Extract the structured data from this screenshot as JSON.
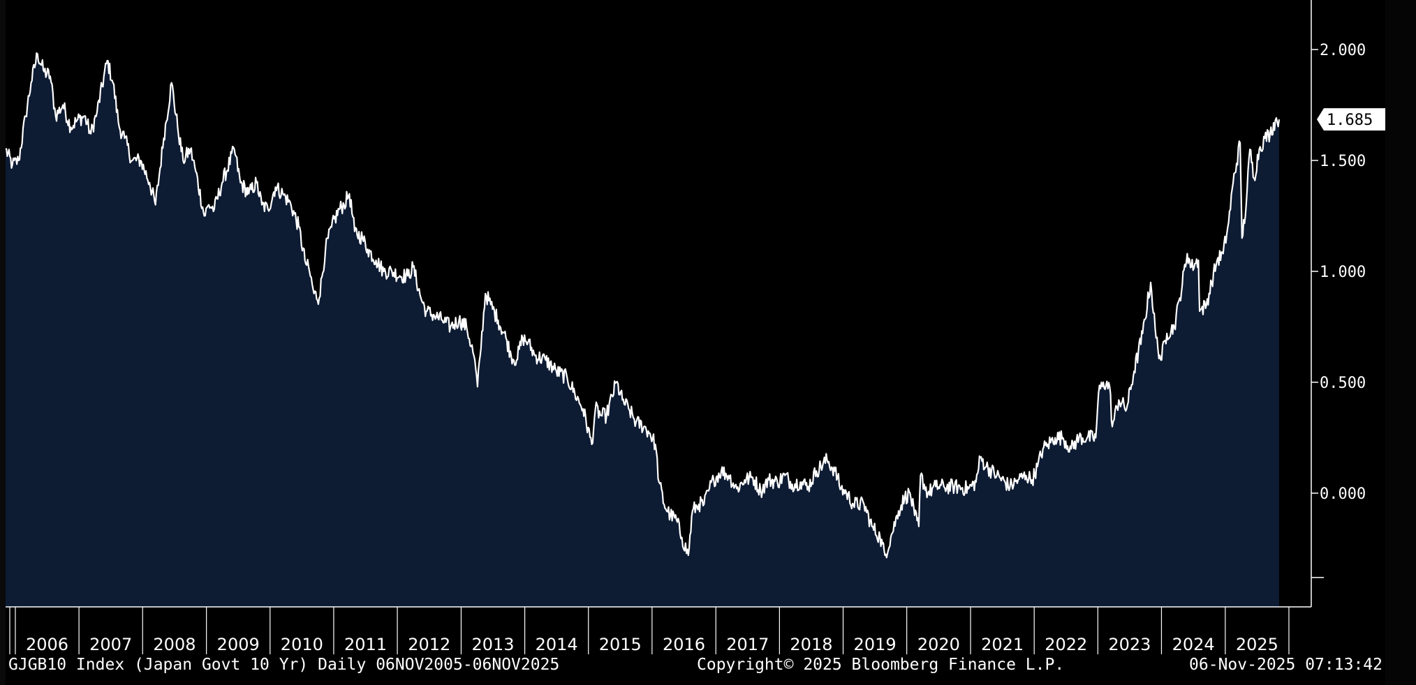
{
  "footer": {
    "left": "GJGB10 Index (Japan Govt 10 Yr) Daily 06NOV2005-06NOV2025",
    "center": "Copyright© 2025 Bloomberg Finance L.P.",
    "right": "06-Nov-2025 07:13:42"
  },
  "chart_data": {
    "type": "area",
    "title": "",
    "xlabel": "",
    "ylabel": "",
    "xlim": [
      "2005-11-06",
      "2025-11-06"
    ],
    "ylim": [
      -0.5,
      2.2
    ],
    "yticks": [
      "2.000",
      "1.500",
      "1.000",
      "0.500",
      "0.000"
    ],
    "ytick_values": [
      2.0,
      1.5,
      1.0,
      0.5,
      0.0
    ],
    "xticks": [
      "2006",
      "2007",
      "2008",
      "2009",
      "2010",
      "2011",
      "2012",
      "2013",
      "2014",
      "2015",
      "2016",
      "2017",
      "2018",
      "2019",
      "2020",
      "2021",
      "2022",
      "2023",
      "2024",
      "2025"
    ],
    "last_value_label": "1.685",
    "grid": false,
    "legend": "none",
    "colors": {
      "line": "#ffffff",
      "fill": "#0d1b33",
      "background": "#000000",
      "label_box": "#ffffff"
    },
    "series": [
      {
        "values": [
          [
            "2005-11-06",
            1.55
          ],
          [
            "2005-12-15",
            1.48
          ],
          [
            "2006-01-20",
            1.5
          ],
          [
            "2006-03-01",
            1.7
          ],
          [
            "2006-04-01",
            1.85
          ],
          [
            "2006-05-08",
            1.98
          ],
          [
            "2006-06-15",
            1.9
          ],
          [
            "2006-07-20",
            1.88
          ],
          [
            "2006-08-20",
            1.7
          ],
          [
            "2006-10-01",
            1.75
          ],
          [
            "2006-11-15",
            1.65
          ],
          [
            "2006-12-20",
            1.68
          ],
          [
            "2007-02-01",
            1.7
          ],
          [
            "2007-03-10",
            1.62
          ],
          [
            "2007-04-15",
            1.72
          ],
          [
            "2007-06-12",
            1.95
          ],
          [
            "2007-07-15",
            1.85
          ],
          [
            "2007-08-20",
            1.65
          ],
          [
            "2007-09-20",
            1.6
          ],
          [
            "2007-11-01",
            1.5
          ],
          [
            "2007-12-20",
            1.5
          ],
          [
            "2008-02-10",
            1.4
          ],
          [
            "2008-03-15",
            1.3
          ],
          [
            "2008-05-01",
            1.6
          ],
          [
            "2008-06-15",
            1.85
          ],
          [
            "2008-07-20",
            1.65
          ],
          [
            "2008-08-20",
            1.5
          ],
          [
            "2008-10-01",
            1.55
          ],
          [
            "2008-11-01",
            1.45
          ],
          [
            "2008-12-20",
            1.25
          ],
          [
            "2009-01-15",
            1.3
          ],
          [
            "2009-02-15",
            1.28
          ],
          [
            "2009-04-01",
            1.4
          ],
          [
            "2009-06-10",
            1.55
          ],
          [
            "2009-07-15",
            1.4
          ],
          [
            "2009-09-01",
            1.35
          ],
          [
            "2009-10-15",
            1.4
          ],
          [
            "2009-11-15",
            1.3
          ],
          [
            "2009-12-20",
            1.28
          ],
          [
            "2010-02-01",
            1.38
          ],
          [
            "2010-03-15",
            1.35
          ],
          [
            "2010-05-01",
            1.3
          ],
          [
            "2010-06-15",
            1.2
          ],
          [
            "2010-07-20",
            1.05
          ],
          [
            "2010-08-15",
            1.0
          ],
          [
            "2010-09-10",
            0.9
          ],
          [
            "2010-10-10",
            0.88
          ],
          [
            "2010-11-15",
            1.1
          ],
          [
            "2010-12-20",
            1.2
          ],
          [
            "2011-02-01",
            1.28
          ],
          [
            "2011-03-01",
            1.3
          ],
          [
            "2011-04-01",
            1.35
          ],
          [
            "2011-05-01",
            1.18
          ],
          [
            "2011-06-15",
            1.15
          ],
          [
            "2011-07-15",
            1.1
          ],
          [
            "2011-09-01",
            1.05
          ],
          [
            "2011-10-15",
            1.0
          ],
          [
            "2011-12-01",
            1.0
          ],
          [
            "2012-01-15",
            0.98
          ],
          [
            "2012-03-01",
            0.98
          ],
          [
            "2012-04-01",
            1.02
          ],
          [
            "2012-05-15",
            0.88
          ],
          [
            "2012-06-15",
            0.82
          ],
          [
            "2012-08-01",
            0.8
          ],
          [
            "2012-09-15",
            0.78
          ],
          [
            "2012-11-01",
            0.75
          ],
          [
            "2012-12-20",
            0.78
          ],
          [
            "2013-02-01",
            0.75
          ],
          [
            "2013-03-15",
            0.62
          ],
          [
            "2013-04-05",
            0.48
          ],
          [
            "2013-04-20",
            0.62
          ],
          [
            "2013-05-20",
            0.9
          ],
          [
            "2013-06-20",
            0.85
          ],
          [
            "2013-08-01",
            0.78
          ],
          [
            "2013-09-15",
            0.7
          ],
          [
            "2013-10-15",
            0.62
          ],
          [
            "2013-11-15",
            0.6
          ],
          [
            "2013-12-20",
            0.7
          ],
          [
            "2014-01-20",
            0.68
          ],
          [
            "2014-03-01",
            0.62
          ],
          [
            "2014-05-01",
            0.6
          ],
          [
            "2014-07-01",
            0.55
          ],
          [
            "2014-09-01",
            0.52
          ],
          [
            "2014-10-15",
            0.45
          ],
          [
            "2014-12-01",
            0.38
          ],
          [
            "2015-01-20",
            0.22
          ],
          [
            "2015-02-10",
            0.38
          ],
          [
            "2015-03-15",
            0.35
          ],
          [
            "2015-04-15",
            0.35
          ],
          [
            "2015-06-10",
            0.5
          ],
          [
            "2015-07-15",
            0.42
          ],
          [
            "2015-08-20",
            0.38
          ],
          [
            "2015-10-01",
            0.32
          ],
          [
            "2015-11-15",
            0.3
          ],
          [
            "2015-12-20",
            0.27
          ],
          [
            "2016-01-20",
            0.22
          ],
          [
            "2016-02-10",
            0.05
          ],
          [
            "2016-03-10",
            -0.05
          ],
          [
            "2016-04-15",
            -0.1
          ],
          [
            "2016-05-20",
            -0.12
          ],
          [
            "2016-06-20",
            -0.2
          ],
          [
            "2016-07-27",
            -0.28
          ],
          [
            "2016-08-20",
            -0.08
          ],
          [
            "2016-09-25",
            -0.05
          ],
          [
            "2016-10-25",
            -0.05
          ],
          [
            "2016-11-25",
            0.02
          ],
          [
            "2016-12-20",
            0.06
          ],
          [
            "2017-02-01",
            0.1
          ],
          [
            "2017-03-15",
            0.08
          ],
          [
            "2017-05-01",
            0.02
          ],
          [
            "2017-06-15",
            0.06
          ],
          [
            "2017-08-01",
            0.07
          ],
          [
            "2017-09-15",
            0.01
          ],
          [
            "2017-11-01",
            0.06
          ],
          [
            "2017-12-20",
            0.05
          ],
          [
            "2018-02-01",
            0.08
          ],
          [
            "2018-03-15",
            0.04
          ],
          [
            "2018-05-01",
            0.05
          ],
          [
            "2018-06-15",
            0.03
          ],
          [
            "2018-08-01",
            0.1
          ],
          [
            "2018-10-01",
            0.15
          ],
          [
            "2018-11-15",
            0.1
          ],
          [
            "2018-12-20",
            0.02
          ],
          [
            "2019-01-20",
            0.0
          ],
          [
            "2019-03-01",
            -0.05
          ],
          [
            "2019-05-01",
            -0.05
          ],
          [
            "2019-06-15",
            -0.15
          ],
          [
            "2019-08-01",
            -0.2
          ],
          [
            "2019-08-29",
            -0.28
          ],
          [
            "2019-10-01",
            -0.2
          ],
          [
            "2019-11-15",
            -0.08
          ],
          [
            "2019-12-20",
            -0.02
          ],
          [
            "2020-01-20",
            0.0
          ],
          [
            "2020-02-15",
            -0.1
          ],
          [
            "2020-03-10",
            -0.15
          ],
          [
            "2020-03-20",
            0.08
          ],
          [
            "2020-05-01",
            0.0
          ],
          [
            "2020-06-15",
            0.03
          ],
          [
            "2020-08-01",
            0.03
          ],
          [
            "2020-10-01",
            0.03
          ],
          [
            "2020-12-20",
            0.02
          ],
          [
            "2021-02-01",
            0.05
          ],
          [
            "2021-02-26",
            0.16
          ],
          [
            "2021-04-01",
            0.12
          ],
          [
            "2021-06-01",
            0.08
          ],
          [
            "2021-08-15",
            0.03
          ],
          [
            "2021-10-01",
            0.06
          ],
          [
            "2021-11-15",
            0.08
          ],
          [
            "2021-12-20",
            0.06
          ],
          [
            "2022-01-20",
            0.12
          ],
          [
            "2022-02-20",
            0.2
          ],
          [
            "2022-03-20",
            0.22
          ],
          [
            "2022-05-01",
            0.25
          ],
          [
            "2022-06-15",
            0.25
          ],
          [
            "2022-08-01",
            0.2
          ],
          [
            "2022-09-15",
            0.25
          ],
          [
            "2022-11-01",
            0.25
          ],
          [
            "2022-12-20",
            0.25
          ],
          [
            "2023-01-05",
            0.45
          ],
          [
            "2023-02-01",
            0.5
          ],
          [
            "2023-03-10",
            0.48
          ],
          [
            "2023-03-25",
            0.3
          ],
          [
            "2023-05-01",
            0.42
          ],
          [
            "2023-06-15",
            0.38
          ],
          [
            "2023-07-28",
            0.55
          ],
          [
            "2023-09-15",
            0.72
          ],
          [
            "2023-10-31",
            0.95
          ],
          [
            "2023-12-01",
            0.7
          ],
          [
            "2023-12-28",
            0.6
          ],
          [
            "2024-02-01",
            0.72
          ],
          [
            "2024-03-15",
            0.75
          ],
          [
            "2024-04-15",
            0.88
          ],
          [
            "2024-05-28",
            1.08
          ],
          [
            "2024-06-20",
            1.02
          ],
          [
            "2024-07-31",
            1.05
          ],
          [
            "2024-08-07",
            0.82
          ],
          [
            "2024-09-15",
            0.85
          ],
          [
            "2024-10-15",
            0.95
          ],
          [
            "2024-11-15",
            1.05
          ],
          [
            "2024-12-20",
            1.08
          ],
          [
            "2025-01-20",
            1.22
          ],
          [
            "2025-02-15",
            1.4
          ],
          [
            "2025-03-27",
            1.58
          ],
          [
            "2025-04-07",
            1.15
          ],
          [
            "2025-05-01",
            1.3
          ],
          [
            "2025-05-22",
            1.55
          ],
          [
            "2025-06-15",
            1.42
          ],
          [
            "2025-07-15",
            1.55
          ],
          [
            "2025-08-15",
            1.6
          ],
          [
            "2025-09-15",
            1.62
          ],
          [
            "2025-10-15",
            1.68
          ],
          [
            "2025-11-06",
            1.685
          ]
        ]
      }
    ]
  }
}
